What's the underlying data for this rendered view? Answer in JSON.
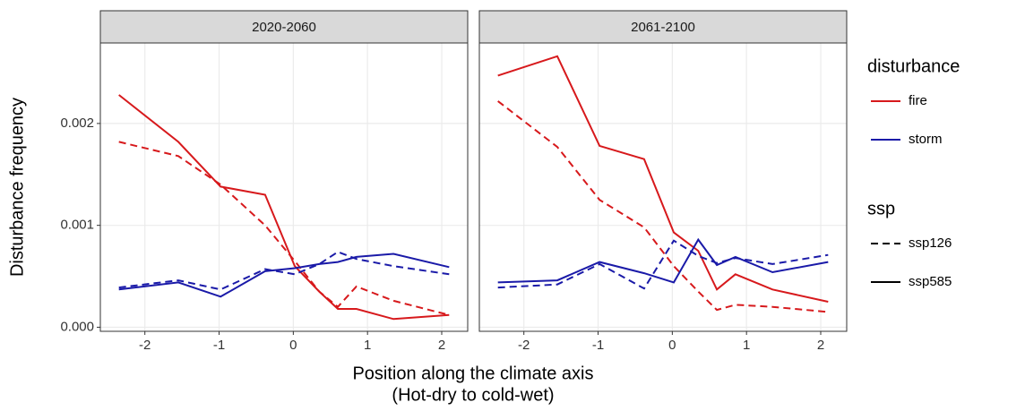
{
  "chart_data": [
    {
      "type": "line",
      "title": "2020-2060",
      "x": [
        -2.35,
        -1.55,
        -0.98,
        -0.38,
        0.02,
        0.35,
        0.6,
        0.85,
        1.35,
        2.1
      ],
      "xlim": [
        -2.6,
        2.35
      ],
      "xticks": [
        -2,
        -1,
        0,
        1,
        2
      ],
      "ylim": [
        -4e-05,
        0.00279
      ],
      "yticks": [
        {
          "value": 0,
          "label": "0.000"
        },
        {
          "value": 0.001,
          "label": "0.001"
        },
        {
          "value": 0.002,
          "label": "0.002"
        }
      ],
      "grid": true,
      "series": [
        {
          "disturbance": "fire",
          "ssp": "ssp585",
          "color": "#d7191c",
          "dash": "solid",
          "values": [
            0.00228,
            0.00182,
            0.00138,
            0.0013,
            0.0006,
            0.00035,
            0.00018,
            0.00018,
            8e-05,
            0.00012
          ]
        },
        {
          "disturbance": "fire",
          "ssp": "ssp126",
          "color": "#d7191c",
          "dash": "dashed",
          "values": [
            0.00182,
            0.00168,
            0.0014,
            0.001,
            0.00065,
            0.00035,
            0.0002,
            0.0004,
            0.00026,
            0.00012
          ]
        },
        {
          "disturbance": "storm",
          "ssp": "ssp585",
          "color": "#1a1aa8",
          "dash": "solid",
          "values": [
            0.00037,
            0.00044,
            0.0003,
            0.00055,
            0.00058,
            0.00062,
            0.00064,
            0.00069,
            0.00072,
            0.00059
          ]
        },
        {
          "disturbance": "storm",
          "ssp": "ssp126",
          "color": "#1a1aa8",
          "dash": "dashed",
          "values": [
            0.00039,
            0.00046,
            0.00037,
            0.00057,
            0.00052,
            0.00062,
            0.00074,
            0.00067,
            0.0006,
            0.00052
          ]
        }
      ]
    },
    {
      "type": "line",
      "title": "2061-2100",
      "x": [
        -2.35,
        -1.55,
        -0.98,
        -0.38,
        0.02,
        0.35,
        0.6,
        0.85,
        1.35,
        2.1
      ],
      "xlim": [
        -2.6,
        2.35
      ],
      "xticks": [
        -2,
        -1,
        0,
        1,
        2
      ],
      "ylim": [
        -4e-05,
        0.00279
      ],
      "yticks": [
        {
          "value": 0,
          "label": "0.000"
        },
        {
          "value": 0.001,
          "label": "0.001"
        },
        {
          "value": 0.002,
          "label": "0.002"
        }
      ],
      "grid": true,
      "series": [
        {
          "disturbance": "fire",
          "ssp": "ssp585",
          "color": "#d7191c",
          "dash": "solid",
          "values": [
            0.00247,
            0.00266,
            0.00178,
            0.00165,
            0.00093,
            0.00075,
            0.00037,
            0.00052,
            0.00037,
            0.00025
          ]
        },
        {
          "disturbance": "fire",
          "ssp": "ssp126",
          "color": "#d7191c",
          "dash": "dashed",
          "values": [
            0.00222,
            0.00177,
            0.00125,
            0.00098,
            0.0006,
            0.00035,
            0.00017,
            0.00022,
            0.0002,
            0.00015
          ]
        },
        {
          "disturbance": "storm",
          "ssp": "ssp585",
          "color": "#1a1aa8",
          "dash": "solid",
          "values": [
            0.00044,
            0.00046,
            0.00064,
            0.00053,
            0.00044,
            0.00086,
            0.00061,
            0.00069,
            0.00054,
            0.00064
          ]
        },
        {
          "disturbance": "storm",
          "ssp": "ssp126",
          "color": "#1a1aa8",
          "dash": "dashed",
          "values": [
            0.00039,
            0.00042,
            0.00062,
            0.00038,
            0.00085,
            0.0007,
            0.00063,
            0.00068,
            0.00062,
            0.00071
          ]
        }
      ]
    }
  ],
  "ylabel": "Disturbance frequency",
  "xlabel": [
    "Position along the climate axis",
    "(Hot-dry to cold-wet)"
  ],
  "legend": [
    {
      "title": "disturbance",
      "items": [
        {
          "label": "fire",
          "color": "#d7191c",
          "dash": "solid"
        },
        {
          "label": "storm",
          "color": "#1a1aa8",
          "dash": "solid"
        }
      ]
    },
    {
      "title": "ssp",
      "items": [
        {
          "label": "ssp126",
          "color": "#000000",
          "dash": "dashed"
        },
        {
          "label": "ssp585",
          "color": "#000000",
          "dash": "solid"
        }
      ]
    }
  ]
}
